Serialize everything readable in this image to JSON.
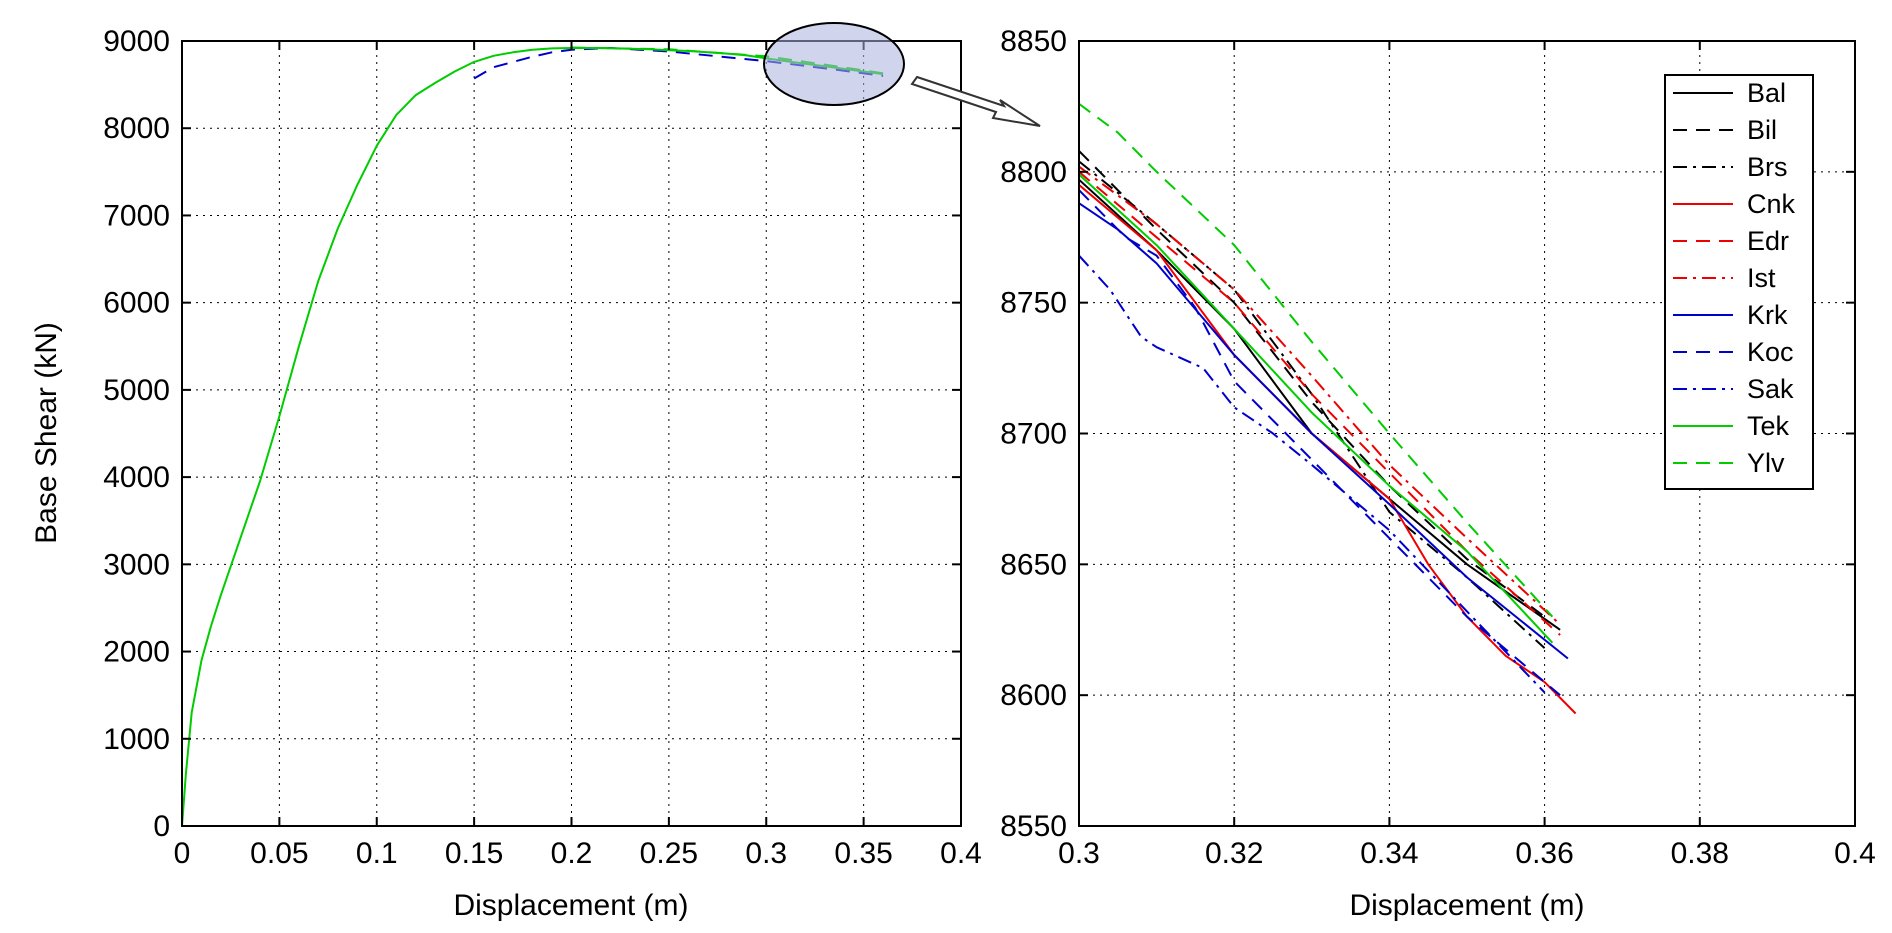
{
  "chart_data": [
    {
      "type": "line",
      "panel": "overview",
      "xlabel": "Displacement (m)",
      "ylabel": "Base Shear (kN)",
      "xlim": [
        0,
        0.4
      ],
      "ylim": [
        0,
        9000
      ],
      "xticks": [
        "0",
        "0.05",
        "0.1",
        "0.15",
        "0.2",
        "0.25",
        "0.3",
        "0.35",
        "0.4"
      ],
      "yticks": [
        "0",
        "1000",
        "2000",
        "3000",
        "4000",
        "5000",
        "6000",
        "7000",
        "8000",
        "9000"
      ],
      "grid": true,
      "zoom_region": {
        "x": [
          0.3,
          0.36
        ],
        "y": [
          8600,
          8830
        ]
      },
      "series": [
        {
          "name": "Koc",
          "color": "#0000cc",
          "dash": "14,9",
          "x": [
            0.15,
            0.16,
            0.17,
            0.18,
            0.19,
            0.2,
            0.22,
            0.25,
            0.3,
            0.34,
            0.36
          ],
          "y": [
            8570,
            8700,
            8760,
            8820,
            8870,
            8900,
            8920,
            8880,
            8770,
            8660,
            8600
          ]
        },
        {
          "name": "Tek",
          "color": "#00cc00",
          "dash": "",
          "x": [
            0,
            0.002,
            0.005,
            0.01,
            0.015,
            0.02,
            0.03,
            0.04,
            0.05,
            0.06,
            0.07,
            0.08,
            0.09,
            0.1,
            0.11,
            0.12,
            0.13,
            0.14,
            0.15,
            0.16,
            0.17,
            0.18,
            0.19,
            0.2,
            0.21,
            0.22,
            0.23,
            0.24,
            0.25,
            0.26,
            0.27,
            0.28,
            0.29,
            0.3,
            0.31,
            0.32,
            0.33,
            0.34,
            0.35,
            0.36
          ],
          "y": [
            0,
            600,
            1300,
            1900,
            2300,
            2650,
            3300,
            3950,
            4700,
            5500,
            6250,
            6850,
            7350,
            7800,
            8150,
            8380,
            8520,
            8650,
            8760,
            8830,
            8870,
            8900,
            8915,
            8920,
            8920,
            8918,
            8912,
            8905,
            8895,
            8885,
            8870,
            8855,
            8835,
            8800,
            8770,
            8740,
            8710,
            8680,
            8650,
            8620
          ]
        },
        {
          "name": "Ylv",
          "color": "#00cc00",
          "dash": "14,9",
          "x": [
            0.2,
            0.25,
            0.3,
            0.33,
            0.36
          ],
          "y": [
            8925,
            8905,
            8825,
            8730,
            8630
          ]
        }
      ]
    },
    {
      "type": "line",
      "panel": "zoom",
      "xlabel": "Displacement (m)",
      "ylabel": "",
      "xlim": [
        0.3,
        0.4
      ],
      "ylim": [
        8550,
        8850
      ],
      "xticks": [
        "0.3",
        "0.32",
        "0.34",
        "0.36",
        "0.38",
        "0.4"
      ],
      "yticks": [
        "8550",
        "8600",
        "8650",
        "8700",
        "8750",
        "8800",
        "8850"
      ],
      "grid": true,
      "legend": "top-right",
      "series": [
        {
          "name": "Bal",
          "color": "#000000",
          "dash": "",
          "x": [
            0.3,
            0.31,
            0.32,
            0.33,
            0.34,
            0.35,
            0.362
          ],
          "y": [
            8797,
            8770,
            8740,
            8700,
            8675,
            8650,
            8625
          ]
        },
        {
          "name": "Bil",
          "color": "#000000",
          "dash": "14,9",
          "x": [
            0.3,
            0.31,
            0.32,
            0.33,
            0.34,
            0.35,
            0.36
          ],
          "y": [
            8808,
            8778,
            8750,
            8712,
            8680,
            8652,
            8630
          ]
        },
        {
          "name": "Brs",
          "color": "#000000",
          "dash": "14,6,3,6",
          "x": [
            0.3,
            0.31,
            0.32,
            0.33,
            0.34,
            0.35,
            0.36
          ],
          "y": [
            8804,
            8780,
            8755,
            8715,
            8670,
            8645,
            8618
          ]
        },
        {
          "name": "Cnk",
          "color": "#ee0000",
          "dash": "",
          "x": [
            0.3,
            0.31,
            0.32,
            0.33,
            0.34,
            0.345,
            0.35,
            0.355,
            0.36,
            0.364
          ],
          "y": [
            8795,
            8770,
            8730,
            8700,
            8675,
            8650,
            8630,
            8615,
            8605,
            8593
          ]
        },
        {
          "name": "Edr",
          "color": "#ee0000",
          "dash": "14,9",
          "x": [
            0.3,
            0.31,
            0.32,
            0.33,
            0.34,
            0.35,
            0.362
          ],
          "y": [
            8800,
            8775,
            8750,
            8715,
            8685,
            8655,
            8623
          ]
        },
        {
          "name": "Ist",
          "color": "#ee0000",
          "dash": "14,6,3,6",
          "x": [
            0.3,
            0.31,
            0.32,
            0.33,
            0.34,
            0.35,
            0.362
          ],
          "y": [
            8802,
            8780,
            8755,
            8722,
            8688,
            8660,
            8627
          ]
        },
        {
          "name": "Krk",
          "color": "#0000cc",
          "dash": "",
          "x": [
            0.3,
            0.305,
            0.31,
            0.32,
            0.33,
            0.34,
            0.35,
            0.363
          ],
          "y": [
            8788,
            8778,
            8765,
            8730,
            8700,
            8673,
            8645,
            8614
          ]
        },
        {
          "name": "Koc",
          "color": "#0000cc",
          "dash": "14,9",
          "x": [
            0.3,
            0.306,
            0.31,
            0.315,
            0.32,
            0.33,
            0.34,
            0.35,
            0.362
          ],
          "y": [
            8793,
            8775,
            8768,
            8748,
            8720,
            8690,
            8660,
            8630,
            8600
          ]
        },
        {
          "name": "Sak",
          "color": "#0000cc",
          "dash": "14,6,3,6",
          "x": [
            0.3,
            0.304,
            0.308,
            0.31,
            0.316,
            0.32,
            0.325,
            0.33,
            0.34,
            0.35,
            0.36
          ],
          "y": [
            8768,
            8755,
            8737,
            8733,
            8725,
            8710,
            8700,
            8688,
            8663,
            8632,
            8601
          ]
        },
        {
          "name": "Tek",
          "color": "#00cc00",
          "dash": "",
          "x": [
            0.3,
            0.31,
            0.32,
            0.33,
            0.34,
            0.35,
            0.361
          ],
          "y": [
            8799,
            8772,
            8740,
            8708,
            8680,
            8655,
            8620
          ]
        },
        {
          "name": "Ylv",
          "color": "#00cc00",
          "dash": "14,9",
          "x": [
            0.3,
            0.305,
            0.31,
            0.32,
            0.33,
            0.34,
            0.35,
            0.361
          ],
          "y": [
            8826,
            8815,
            8800,
            8772,
            8735,
            8700,
            8666,
            8630
          ]
        }
      ]
    }
  ]
}
